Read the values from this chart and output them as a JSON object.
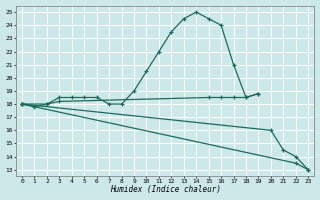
{
  "bg_color": "#cde8e8",
  "line_color": "#1a6b5e",
  "grid_color": "#ffffff",
  "xlim": [
    -0.5,
    23.5
  ],
  "ylim": [
    12.5,
    25.5
  ],
  "yticks": [
    13,
    14,
    15,
    16,
    17,
    18,
    19,
    20,
    21,
    22,
    23,
    24,
    25
  ],
  "xticks": [
    0,
    1,
    2,
    3,
    4,
    5,
    6,
    7,
    8,
    9,
    10,
    11,
    12,
    13,
    14,
    15,
    16,
    17,
    18,
    19,
    20,
    21,
    22,
    23
  ],
  "xlabel": "Humidex (Indice chaleur)",
  "lines": [
    {
      "x": [
        0,
        1,
        2,
        3,
        4,
        5,
        6,
        7,
        8,
        9,
        10,
        11,
        12,
        13,
        14,
        15,
        16,
        17,
        18,
        19
      ],
      "y": [
        18.0,
        17.8,
        18.0,
        18.5,
        18.5,
        18.5,
        18.5,
        18.0,
        18.0,
        19.0,
        20.5,
        22.0,
        23.5,
        24.5,
        25.0,
        24.5,
        24.0,
        21.0,
        18.5,
        18.8
      ]
    },
    {
      "x": [
        0,
        2,
        3,
        15,
        16,
        17,
        18,
        19
      ],
      "y": [
        18.0,
        18.0,
        18.2,
        18.5,
        18.5,
        18.5,
        18.5,
        18.8
      ]
    },
    {
      "x": [
        0,
        20,
        21,
        22,
        23
      ],
      "y": [
        18.0,
        16.0,
        14.5,
        14.0,
        13.0
      ]
    },
    {
      "x": [
        0,
        22,
        23
      ],
      "y": [
        18.0,
        13.5,
        13.0
      ]
    }
  ]
}
